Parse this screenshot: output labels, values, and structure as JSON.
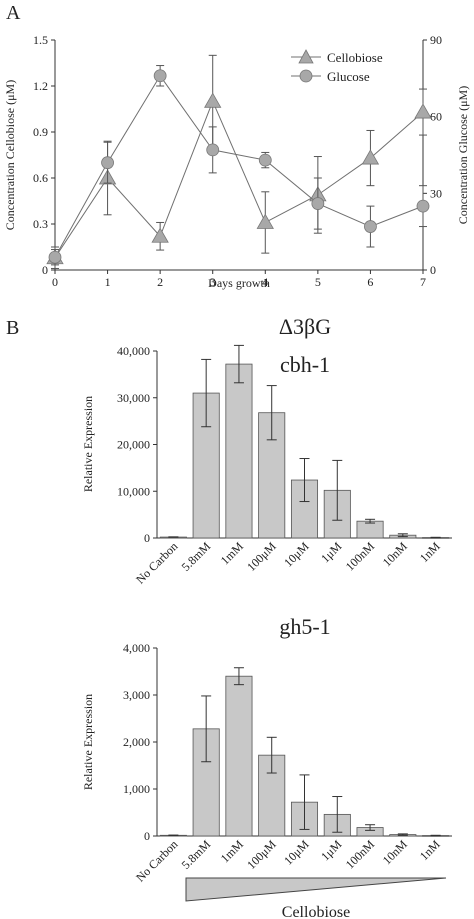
{
  "panels": {
    "a_label": "A",
    "b_label": "B"
  },
  "legend": {
    "cellobiose": "Cellobiose",
    "glucose": "Glucose"
  },
  "genotype_title": "Δ3βG",
  "cellobiose_wedge_label": "Cellobiose",
  "colors": {
    "bar_fill": "#c8c8c8",
    "marker_fill": "#a8a8a8",
    "line": "#707070",
    "axis": "#333333"
  },
  "chart_data": [
    {
      "type": "line",
      "panel": "A",
      "x": [
        0,
        1,
        2,
        3,
        4,
        5,
        6,
        7
      ],
      "xlabel": "Days growth",
      "ylabel": "Concentration Cellobiose (μM)",
      "ylabel_right": "Concentration Glucose (μM)",
      "xlim": [
        0,
        7
      ],
      "ylim": [
        0,
        1.5
      ],
      "ylim_right": [
        0,
        90
      ],
      "yticks": [
        "0",
        "0.3",
        "0.6",
        "0.9",
        "1.2",
        "1.5"
      ],
      "yticks_right": [
        "0",
        "30",
        "60",
        "90"
      ],
      "legend_position": "top-right",
      "series": [
        {
          "name": "Cellobiose",
          "axis": "left",
          "marker": "triangle",
          "values": [
            0.08,
            0.6,
            0.22,
            1.1,
            0.31,
            0.49,
            0.73,
            1.03
          ],
          "errors": [
            0.07,
            0.24,
            0.09,
            0.3,
            0.2,
            0.25,
            0.18,
            0.15
          ]
        },
        {
          "name": "Glucose",
          "axis": "right",
          "marker": "circle",
          "values": [
            5,
            42,
            76,
            47,
            43,
            26,
            17,
            25
          ],
          "errors": [
            3,
            8,
            4,
            9,
            3,
            10,
            8,
            8
          ]
        }
      ]
    },
    {
      "type": "bar",
      "panel": "B",
      "title": "cbh-1",
      "ylabel": "Relative Expression",
      "categories": [
        "No Carbon",
        "5.8mM",
        "1mM",
        "100μM",
        "10μM",
        "1μM",
        "100nM",
        "10nM",
        "1nM"
      ],
      "values": [
        200,
        31000,
        37200,
        26800,
        12400,
        10200,
        3600,
        600,
        100
      ],
      "errors": [
        50,
        7200,
        4000,
        5800,
        4600,
        6400,
        400,
        300,
        50
      ],
      "ylim": [
        0,
        40000
      ],
      "yticks": [
        "0",
        "10,000",
        "20,000",
        "30,000",
        "40,000"
      ]
    },
    {
      "type": "bar",
      "panel": "B",
      "title": "gh5-1",
      "ylabel": "Relative Expression",
      "categories": [
        "No Carbon",
        "5.8mM",
        "1mM",
        "100μM",
        "10μM",
        "1μM",
        "100nM",
        "10nM",
        "1nM"
      ],
      "values": [
        15,
        2280,
        3400,
        1720,
        720,
        460,
        180,
        30,
        10
      ],
      "errors": [
        5,
        700,
        180,
        380,
        580,
        380,
        60,
        15,
        5
      ],
      "ylim": [
        0,
        4000
      ],
      "yticks": [
        "0",
        "1,000",
        "2,000",
        "3,000",
        "4,000"
      ]
    }
  ]
}
